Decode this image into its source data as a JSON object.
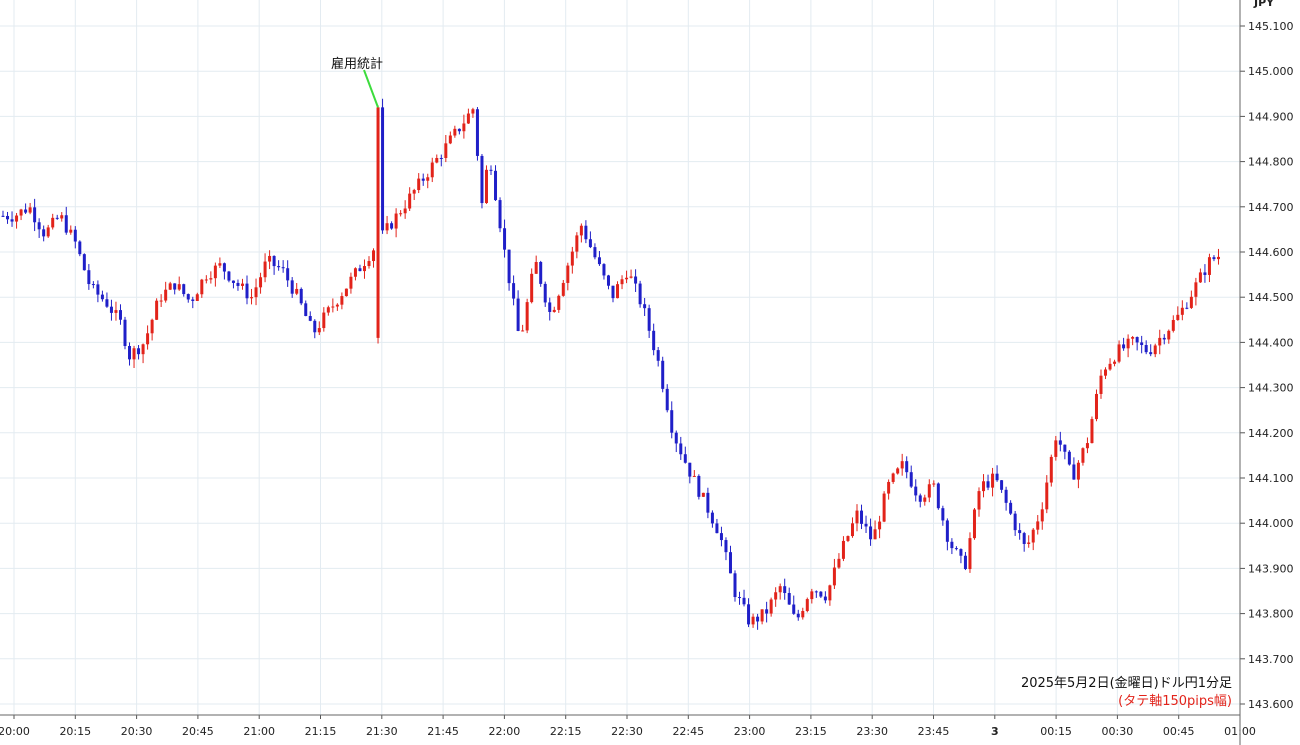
{
  "chart_data": {
    "type": "candlestick",
    "title": "2025年5月2日(金曜日)ドル円1分足",
    "subtitle": "(タテ軸150pips幅)",
    "y_unit": "JPY",
    "ylim": [
      143.58,
      145.16
    ],
    "y_ticks": [
      "145.100",
      "145.000",
      "144.900",
      "144.800",
      "144.700",
      "144.600",
      "144.500",
      "144.400",
      "144.300",
      "144.200",
      "144.100",
      "144.000",
      "143.900",
      "143.800",
      "143.700",
      "143.600"
    ],
    "x_ticks": [
      "20:00",
      "20:15",
      "20:30",
      "20:45",
      "21:00",
      "21:15",
      "21:30",
      "21:45",
      "22:00",
      "22:15",
      "22:30",
      "22:45",
      "23:00",
      "23:15",
      "23:30",
      "23:45",
      "3",
      "00:15",
      "00:30",
      "00:45",
      "01:00"
    ],
    "x_range_minutes": [
      -0.5,
      61
    ],
    "grid": true,
    "up_color": "#e2231a",
    "down_color": "#1f1fc8",
    "event": {
      "label": "雇用統計",
      "at_minute": 30,
      "price": 144.92,
      "line_color": "#3ddc3d"
    },
    "series": [
      {
        "name": "USD/JPY",
        "anchors": [
          [
            0,
            144.68
          ],
          [
            1,
            144.7
          ],
          [
            2,
            144.64
          ],
          [
            3,
            144.68
          ],
          [
            4,
            144.62
          ],
          [
            5,
            144.52
          ],
          [
            6,
            144.49
          ],
          [
            7,
            144.44
          ],
          [
            7.5,
            144.37
          ],
          [
            8.5,
            144.4
          ],
          [
            9.5,
            144.5
          ],
          [
            10.5,
            144.53
          ],
          [
            11.5,
            144.49
          ],
          [
            12.5,
            144.55
          ],
          [
            13.5,
            144.57
          ],
          [
            14.5,
            144.53
          ],
          [
            15.5,
            144.5
          ],
          [
            16.5,
            144.58
          ],
          [
            17.5,
            144.56
          ],
          [
            18.5,
            144.5
          ],
          [
            19.5,
            144.42
          ],
          [
            30,
            144.92
          ],
          [
            30.5,
            144.7
          ],
          [
            31,
            144.82
          ],
          [
            32,
            144.6
          ],
          [
            33,
            144.4
          ],
          [
            34,
            144.58
          ],
          [
            35,
            144.46
          ],
          [
            36,
            144.56
          ],
          [
            37,
            144.66
          ],
          [
            38,
            144.58
          ],
          [
            39,
            144.5
          ],
          [
            40,
            144.56
          ],
          [
            41,
            144.48
          ],
          [
            42,
            144.36
          ],
          [
            43,
            144.2
          ],
          [
            44,
            144.12
          ],
          [
            45,
            144.05
          ],
          [
            46,
            143.98
          ],
          [
            47,
            143.85
          ],
          [
            48,
            143.78
          ],
          [
            49,
            143.8
          ],
          [
            50,
            143.86
          ],
          [
            51,
            143.78
          ],
          [
            52,
            143.86
          ],
          [
            53,
            143.84
          ],
          [
            54,
            143.94
          ],
          [
            55,
            144.02
          ],
          [
            56,
            143.96
          ],
          [
            57,
            144.08
          ],
          [
            58,
            144.13
          ],
          [
            59,
            144.06
          ],
          [
            60,
            144.08
          ],
          [
            61,
            143.96
          ],
          [
            62,
            143.9
          ],
          [
            63,
            144.08
          ],
          [
            64,
            144.1
          ],
          [
            65,
            144.02
          ],
          [
            66,
            143.94
          ],
          [
            67,
            144.03
          ],
          [
            68,
            144.2
          ],
          [
            69,
            144.1
          ],
          [
            70,
            144.18
          ],
          [
            71,
            144.34
          ],
          [
            72,
            144.38
          ],
          [
            73,
            144.4
          ],
          [
            74,
            144.38
          ],
          [
            75,
            144.42
          ],
          [
            76,
            144.46
          ],
          [
            77,
            144.52
          ],
          [
            78,
            144.58
          ],
          [
            79,
            144.6
          ],
          [
            80,
            144.52
          ],
          [
            80.5,
            144.58
          ]
        ]
      }
    ]
  }
}
